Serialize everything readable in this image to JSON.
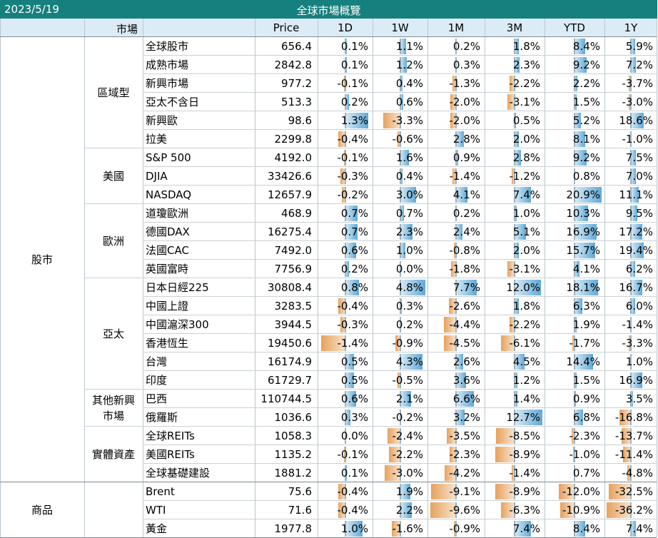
{
  "header": {
    "date": "2023/5/19",
    "title": "全球市場概覽"
  },
  "columns": {
    "market": "市場",
    "price": "Price",
    "d1": "1D",
    "w1": "1W",
    "m1": "1M",
    "m3": "3M",
    "ytd": "YTD",
    "y1": "1Y"
  },
  "categories": [
    {
      "name": "股市",
      "subgroups": [
        {
          "name": "區域型",
          "rows": [
            {
              "name": "全球股市",
              "price": "656.4",
              "values": [
                "0.1%",
                "1.1%",
                "0.2%",
                "1.8%",
                "8.4%",
                "5.9%"
              ]
            },
            {
              "name": "成熟市場",
              "price": "2842.8",
              "values": [
                "0.1%",
                "1.2%",
                "0.3%",
                "2.3%",
                "9.2%",
                "7.2%"
              ]
            },
            {
              "name": "新興市場",
              "price": "977.2",
              "values": [
                "-0.1%",
                "0.4%",
                "-1.3%",
                "-2.2%",
                "2.2%",
                "-3.7%"
              ]
            },
            {
              "name": "亞太不含日",
              "price": "513.3",
              "values": [
                "0.2%",
                "0.6%",
                "-2.0%",
                "-3.1%",
                "1.5%",
                "-3.0%"
              ]
            },
            {
              "name": "新興歐",
              "price": "98.6",
              "values": [
                "1.3%",
                "-3.3%",
                "-2.0%",
                "0.5%",
                "5.2%",
                "18.6%"
              ]
            },
            {
              "name": "拉美",
              "price": "2299.8",
              "values": [
                "-0.4%",
                "-0.6%",
                "2.8%",
                "2.0%",
                "8.1%",
                "-1.0%"
              ]
            }
          ]
        },
        {
          "name": "美國",
          "rows": [
            {
              "name": "S&P 500",
              "price": "4192.0",
              "values": [
                "-0.1%",
                "1.6%",
                "0.9%",
                "2.8%",
                "9.2%",
                "7.5%"
              ]
            },
            {
              "name": "DJIA",
              "price": "33426.6",
              "values": [
                "-0.3%",
                "0.4%",
                "-1.4%",
                "-1.2%",
                "0.8%",
                "7.0%"
              ]
            },
            {
              "name": "NASDAQ",
              "price": "12657.9",
              "values": [
                "-0.2%",
                "3.0%",
                "4.1%",
                "7.4%",
                "20.9%",
                "11.1%"
              ]
            }
          ]
        },
        {
          "name": "歐洲",
          "rows": [
            {
              "name": "道瓊歐洲",
              "price": "468.9",
              "values": [
                "0.7%",
                "0.7%",
                "0.2%",
                "1.0%",
                "10.3%",
                "9.5%"
              ]
            },
            {
              "name": "德國DAX",
              "price": "16275.4",
              "values": [
                "0.7%",
                "2.3%",
                "2.4%",
                "5.1%",
                "16.9%",
                "17.2%"
              ]
            },
            {
              "name": "法國CAC",
              "price": "7492.0",
              "values": [
                "0.6%",
                "1.0%",
                "-0.8%",
                "2.0%",
                "15.7%",
                "19.4%"
              ]
            },
            {
              "name": "英國富時",
              "price": "7756.9",
              "values": [
                "0.2%",
                "0.0%",
                "-1.8%",
                "-3.1%",
                "4.1%",
                "6.2%"
              ]
            }
          ]
        },
        {
          "name": "亞太",
          "rows": [
            {
              "name": "日本日經225",
              "price": "30808.4",
              "values": [
                "0.8%",
                "4.8%",
                "7.7%",
                "12.0%",
                "18.1%",
                "16.7%"
              ]
            },
            {
              "name": "中國上證",
              "price": "3283.5",
              "values": [
                "-0.4%",
                "0.3%",
                "-2.6%",
                "1.8%",
                "6.3%",
                "6.0%"
              ]
            },
            {
              "name": "中國滬深300",
              "price": "3944.5",
              "values": [
                "-0.3%",
                "0.2%",
                "-4.4%",
                "-2.2%",
                "1.9%",
                "-1.4%"
              ]
            },
            {
              "name": "香港恆生",
              "price": "19450.6",
              "values": [
                "-1.4%",
                "-0.9%",
                "-4.5%",
                "-6.1%",
                "-1.7%",
                "-3.3%"
              ]
            },
            {
              "name": "台灣",
              "price": "16174.9",
              "values": [
                "0.5%",
                "4.3%",
                "2.6%",
                "4.5%",
                "14.4%",
                "1.0%"
              ]
            },
            {
              "name": "印度",
              "price": "61729.7",
              "values": [
                "0.5%",
                "-0.5%",
                "3.6%",
                "1.2%",
                "1.5%",
                "16.9%"
              ]
            }
          ]
        },
        {
          "name": "其他新興市場",
          "rows": [
            {
              "name": "巴西",
              "price": "110744.5",
              "values": [
                "0.6%",
                "2.1%",
                "6.6%",
                "1.4%",
                "0.9%",
                "3.5%"
              ]
            },
            {
              "name": "俄羅斯",
              "price": "1036.6",
              "values": [
                "0.3%",
                "-0.2%",
                "3.2%",
                "12.7%",
                "6.8%",
                "-16.8%"
              ]
            }
          ]
        },
        {
          "name": "實體資產",
          "rows": [
            {
              "name": "全球REITs",
              "price": "1058.3",
              "values": [
                "0.0%",
                "-2.4%",
                "-3.5%",
                "-8.5%",
                "-2.3%",
                "-13.7%"
              ]
            },
            {
              "name": "美國REITs",
              "price": "1135.2",
              "values": [
                "-0.1%",
                "-2.2%",
                "-2.3%",
                "-8.9%",
                "-1.0%",
                "-11.4%"
              ]
            },
            {
              "name": "全球基礎建設",
              "price": "1881.2",
              "values": [
                "0.1%",
                "-3.0%",
                "-4.2%",
                "-1.4%",
                "0.7%",
                "-4.8%"
              ]
            }
          ]
        }
      ]
    },
    {
      "name": "商品",
      "subgroups": [
        {
          "name": "",
          "rows": [
            {
              "name": "Brent",
              "price": "75.6",
              "values": [
                "-0.4%",
                "1.9%",
                "-9.1%",
                "-8.9%",
                "-12.0%",
                "-32.5%"
              ]
            },
            {
              "name": "WTI",
              "price": "71.6",
              "values": [
                "-0.4%",
                "2.2%",
                "-9.6%",
                "-6.3%",
                "-10.9%",
                "-36.2%"
              ]
            },
            {
              "name": "黃金",
              "price": "1977.8",
              "values": [
                "1.0%",
                "-1.6%",
                "-0.9%",
                "7.4%",
                "8.4%",
                "7.4%"
              ]
            }
          ]
        }
      ]
    }
  ],
  "colors": {
    "header_bg": "#16807e",
    "column_header_bg": "#dcecf6",
    "positive_bar": "#5fa9d6",
    "negative_bar": "#e8a15c"
  }
}
